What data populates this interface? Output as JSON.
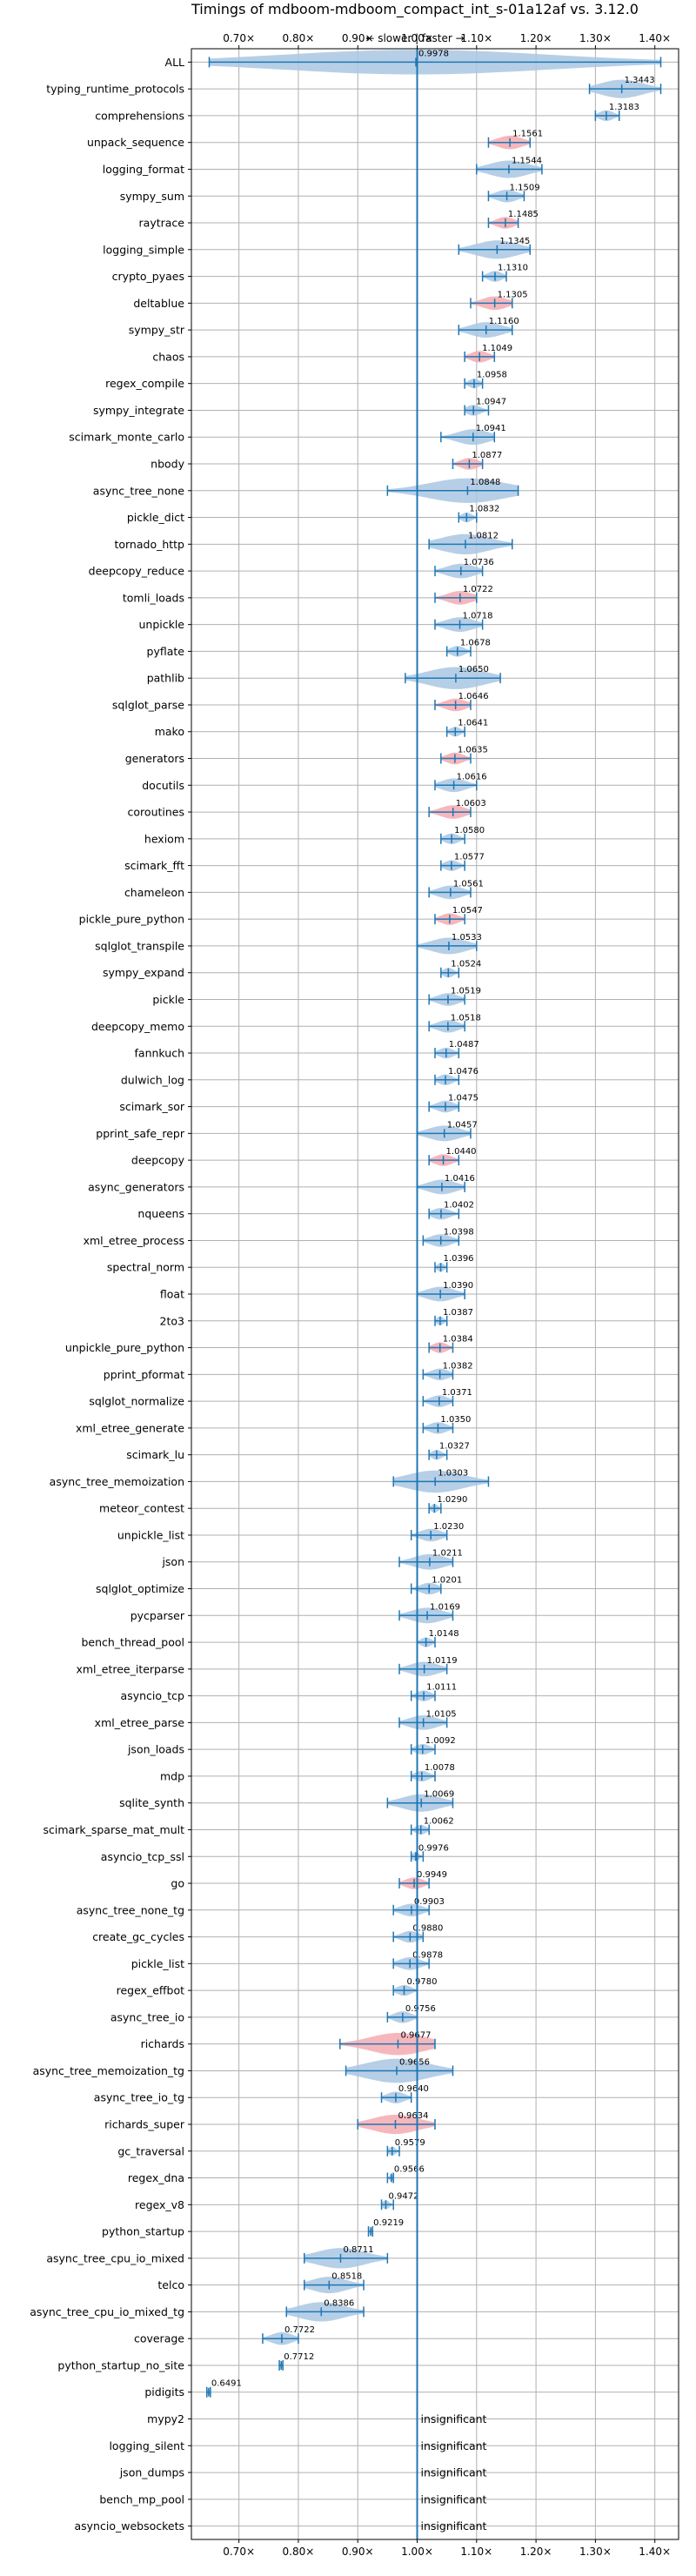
{
  "chart_data": {
    "type": "violin",
    "title": "Timings of mdboom-mdboom_compact_int_s-01a12af vs. 3.12.0",
    "subtitle": "← slower | faster →",
    "x_ticks": [
      "0.70×",
      "0.80×",
      "0.90×",
      "1.00×",
      "1.10×",
      "1.20×",
      "1.30×",
      "1.40×"
    ],
    "x_tick_values": [
      0.7,
      0.8,
      0.9,
      1.0,
      1.1,
      1.2,
      1.3,
      1.4
    ],
    "xlim": [
      0.62,
      1.44
    ],
    "reference_line": 1.0,
    "colors": {
      "faster": "#a9c7e3",
      "slower": "#f4aab0",
      "whisker": "#1f77b4",
      "reference": "#1f77b4"
    },
    "benchmarks": [
      {
        "name": "ALL",
        "value": 0.9978,
        "color": "faster",
        "min": 0.65,
        "max": 1.41
      },
      {
        "name": "typing_runtime_protocols",
        "value": 1.3443,
        "color": "faster",
        "min": 1.29,
        "max": 1.41
      },
      {
        "name": "comprehensions",
        "value": 1.3183,
        "color": "faster",
        "min": 1.3,
        "max": 1.34
      },
      {
        "name": "unpack_sequence",
        "value": 1.1561,
        "color": "slower",
        "min": 1.12,
        "max": 1.19
      },
      {
        "name": "logging_format",
        "value": 1.1544,
        "color": "faster",
        "min": 1.1,
        "max": 1.21
      },
      {
        "name": "sympy_sum",
        "value": 1.1509,
        "color": "faster",
        "min": 1.12,
        "max": 1.18
      },
      {
        "name": "raytrace",
        "value": 1.1485,
        "color": "slower",
        "min": 1.12,
        "max": 1.17
      },
      {
        "name": "logging_simple",
        "value": 1.1345,
        "color": "faster",
        "min": 1.07,
        "max": 1.19
      },
      {
        "name": "crypto_pyaes",
        "value": 1.131,
        "color": "faster",
        "min": 1.11,
        "max": 1.15
      },
      {
        "name": "deltablue",
        "value": 1.1305,
        "color": "slower",
        "min": 1.09,
        "max": 1.16
      },
      {
        "name": "sympy_str",
        "value": 1.116,
        "color": "faster",
        "min": 1.07,
        "max": 1.16
      },
      {
        "name": "chaos",
        "value": 1.1049,
        "color": "slower",
        "min": 1.08,
        "max": 1.13
      },
      {
        "name": "regex_compile",
        "value": 1.0958,
        "color": "faster",
        "min": 1.08,
        "max": 1.11
      },
      {
        "name": "sympy_integrate",
        "value": 1.0947,
        "color": "faster",
        "min": 1.08,
        "max": 1.12
      },
      {
        "name": "scimark_monte_carlo",
        "value": 1.0941,
        "color": "faster",
        "min": 1.04,
        "max": 1.13
      },
      {
        "name": "nbody",
        "value": 1.0877,
        "color": "slower",
        "min": 1.06,
        "max": 1.11
      },
      {
        "name": "async_tree_none",
        "value": 1.0848,
        "color": "faster",
        "min": 0.95,
        "max": 1.17
      },
      {
        "name": "pickle_dict",
        "value": 1.0832,
        "color": "faster",
        "min": 1.07,
        "max": 1.1
      },
      {
        "name": "tornado_http",
        "value": 1.0812,
        "color": "faster",
        "min": 1.02,
        "max": 1.16
      },
      {
        "name": "deepcopy_reduce",
        "value": 1.0736,
        "color": "faster",
        "min": 1.03,
        "max": 1.11
      },
      {
        "name": "tomli_loads",
        "value": 1.0722,
        "color": "slower",
        "min": 1.03,
        "max": 1.1
      },
      {
        "name": "unpickle",
        "value": 1.0718,
        "color": "faster",
        "min": 1.03,
        "max": 1.11
      },
      {
        "name": "pyflate",
        "value": 1.0678,
        "color": "faster",
        "min": 1.05,
        "max": 1.09
      },
      {
        "name": "pathlib",
        "value": 1.065,
        "color": "faster",
        "min": 0.98,
        "max": 1.14
      },
      {
        "name": "sqlglot_parse",
        "value": 1.0646,
        "color": "slower",
        "min": 1.03,
        "max": 1.09
      },
      {
        "name": "mako",
        "value": 1.0641,
        "color": "faster",
        "min": 1.05,
        "max": 1.08
      },
      {
        "name": "generators",
        "value": 1.0635,
        "color": "slower",
        "min": 1.04,
        "max": 1.09
      },
      {
        "name": "docutils",
        "value": 1.0616,
        "color": "faster",
        "min": 1.03,
        "max": 1.1
      },
      {
        "name": "coroutines",
        "value": 1.0603,
        "color": "slower",
        "min": 1.02,
        "max": 1.09
      },
      {
        "name": "hexiom",
        "value": 1.058,
        "color": "faster",
        "min": 1.04,
        "max": 1.08
      },
      {
        "name": "scimark_fft",
        "value": 1.0577,
        "color": "faster",
        "min": 1.04,
        "max": 1.08
      },
      {
        "name": "chameleon",
        "value": 1.0561,
        "color": "faster",
        "min": 1.02,
        "max": 1.09
      },
      {
        "name": "pickle_pure_python",
        "value": 1.0547,
        "color": "slower",
        "min": 1.03,
        "max": 1.08
      },
      {
        "name": "sqlglot_transpile",
        "value": 1.0533,
        "color": "faster",
        "min": 1.0,
        "max": 1.1
      },
      {
        "name": "sympy_expand",
        "value": 1.0524,
        "color": "faster",
        "min": 1.04,
        "max": 1.07
      },
      {
        "name": "pickle",
        "value": 1.0519,
        "color": "faster",
        "min": 1.02,
        "max": 1.08
      },
      {
        "name": "deepcopy_memo",
        "value": 1.0518,
        "color": "faster",
        "min": 1.02,
        "max": 1.08
      },
      {
        "name": "fannkuch",
        "value": 1.0487,
        "color": "faster",
        "min": 1.03,
        "max": 1.07
      },
      {
        "name": "dulwich_log",
        "value": 1.0476,
        "color": "faster",
        "min": 1.03,
        "max": 1.07
      },
      {
        "name": "scimark_sor",
        "value": 1.0475,
        "color": "faster",
        "min": 1.02,
        "max": 1.07
      },
      {
        "name": "pprint_safe_repr",
        "value": 1.0457,
        "color": "faster",
        "min": 1.0,
        "max": 1.09
      },
      {
        "name": "deepcopy",
        "value": 1.044,
        "color": "slower",
        "min": 1.02,
        "max": 1.07
      },
      {
        "name": "async_generators",
        "value": 1.0416,
        "color": "faster",
        "min": 1.0,
        "max": 1.08
      },
      {
        "name": "nqueens",
        "value": 1.0402,
        "color": "faster",
        "min": 1.02,
        "max": 1.07
      },
      {
        "name": "xml_etree_process",
        "value": 1.0398,
        "color": "faster",
        "min": 1.01,
        "max": 1.07
      },
      {
        "name": "spectral_norm",
        "value": 1.0396,
        "color": "faster",
        "min": 1.03,
        "max": 1.05
      },
      {
        "name": "float",
        "value": 1.039,
        "color": "faster",
        "min": 1.0,
        "max": 1.08
      },
      {
        "name": "2to3",
        "value": 1.0387,
        "color": "faster",
        "min": 1.03,
        "max": 1.05
      },
      {
        "name": "unpickle_pure_python",
        "value": 1.0384,
        "color": "slower",
        "min": 1.02,
        "max": 1.06
      },
      {
        "name": "pprint_pformat",
        "value": 1.0382,
        "color": "faster",
        "min": 1.01,
        "max": 1.06
      },
      {
        "name": "sqlglot_normalize",
        "value": 1.0371,
        "color": "faster",
        "min": 1.01,
        "max": 1.06
      },
      {
        "name": "xml_etree_generate",
        "value": 1.035,
        "color": "faster",
        "min": 1.01,
        "max": 1.06
      },
      {
        "name": "scimark_lu",
        "value": 1.0327,
        "color": "faster",
        "min": 1.02,
        "max": 1.05
      },
      {
        "name": "async_tree_memoization",
        "value": 1.0303,
        "color": "faster",
        "min": 0.96,
        "max": 1.12
      },
      {
        "name": "meteor_contest",
        "value": 1.029,
        "color": "faster",
        "min": 1.02,
        "max": 1.04
      },
      {
        "name": "unpickle_list",
        "value": 1.023,
        "color": "faster",
        "min": 0.99,
        "max": 1.05
      },
      {
        "name": "json",
        "value": 1.0211,
        "color": "faster",
        "min": 0.97,
        "max": 1.06
      },
      {
        "name": "sqlglot_optimize",
        "value": 1.0201,
        "color": "faster",
        "min": 0.99,
        "max": 1.04
      },
      {
        "name": "pycparser",
        "value": 1.0169,
        "color": "faster",
        "min": 0.97,
        "max": 1.06
      },
      {
        "name": "bench_thread_pool",
        "value": 1.0148,
        "color": "faster",
        "min": 1.0,
        "max": 1.03
      },
      {
        "name": "xml_etree_iterparse",
        "value": 1.0119,
        "color": "faster",
        "min": 0.97,
        "max": 1.05
      },
      {
        "name": "asyncio_tcp",
        "value": 1.0111,
        "color": "faster",
        "min": 0.99,
        "max": 1.03
      },
      {
        "name": "xml_etree_parse",
        "value": 1.0105,
        "color": "faster",
        "min": 0.97,
        "max": 1.05
      },
      {
        "name": "json_loads",
        "value": 1.0092,
        "color": "faster",
        "min": 0.99,
        "max": 1.03
      },
      {
        "name": "mdp",
        "value": 1.0078,
        "color": "faster",
        "min": 0.99,
        "max": 1.03
      },
      {
        "name": "sqlite_synth",
        "value": 1.0069,
        "color": "faster",
        "min": 0.95,
        "max": 1.06
      },
      {
        "name": "scimark_sparse_mat_mult",
        "value": 1.0062,
        "color": "faster",
        "min": 0.99,
        "max": 1.02
      },
      {
        "name": "asyncio_tcp_ssl",
        "value": 0.9976,
        "color": "faster",
        "min": 0.99,
        "max": 1.01
      },
      {
        "name": "go",
        "value": 0.9949,
        "color": "slower",
        "min": 0.97,
        "max": 1.02
      },
      {
        "name": "async_tree_none_tg",
        "value": 0.9903,
        "color": "faster",
        "min": 0.96,
        "max": 1.02
      },
      {
        "name": "create_gc_cycles",
        "value": 0.988,
        "color": "faster",
        "min": 0.96,
        "max": 1.01
      },
      {
        "name": "pickle_list",
        "value": 0.9878,
        "color": "faster",
        "min": 0.96,
        "max": 1.02
      },
      {
        "name": "regex_effbot",
        "value": 0.978,
        "color": "faster",
        "min": 0.96,
        "max": 1.0
      },
      {
        "name": "async_tree_io",
        "value": 0.9756,
        "color": "faster",
        "min": 0.95,
        "max": 1.0
      },
      {
        "name": "richards",
        "value": 0.9677,
        "color": "slower",
        "min": 0.87,
        "max": 1.03
      },
      {
        "name": "async_tree_memoization_tg",
        "value": 0.9656,
        "color": "faster",
        "min": 0.88,
        "max": 1.06
      },
      {
        "name": "async_tree_io_tg",
        "value": 0.964,
        "color": "faster",
        "min": 0.94,
        "max": 0.99
      },
      {
        "name": "richards_super",
        "value": 0.9634,
        "color": "slower",
        "min": 0.9,
        "max": 1.03
      },
      {
        "name": "gc_traversal",
        "value": 0.9579,
        "color": "faster",
        "min": 0.95,
        "max": 0.97
      },
      {
        "name": "regex_dna",
        "value": 0.9566,
        "color": "faster",
        "min": 0.95,
        "max": 0.96
      },
      {
        "name": "regex_v8",
        "value": 0.9472,
        "color": "faster",
        "min": 0.94,
        "max": 0.96
      },
      {
        "name": "python_startup",
        "value": 0.9219,
        "color": "faster",
        "min": 0.918,
        "max": 0.925
      },
      {
        "name": "async_tree_cpu_io_mixed",
        "value": 0.8711,
        "color": "faster",
        "min": 0.81,
        "max": 0.95
      },
      {
        "name": "telco",
        "value": 0.8518,
        "color": "faster",
        "min": 0.81,
        "max": 0.91
      },
      {
        "name": "async_tree_cpu_io_mixed_tg",
        "value": 0.8386,
        "color": "faster",
        "min": 0.78,
        "max": 0.91
      },
      {
        "name": "coverage",
        "value": 0.7722,
        "color": "faster",
        "min": 0.74,
        "max": 0.8
      },
      {
        "name": "python_startup_no_site",
        "value": 0.7712,
        "color": "faster",
        "min": 0.768,
        "max": 0.774
      },
      {
        "name": "pidigits",
        "value": 0.6491,
        "color": "faster",
        "min": 0.646,
        "max": 0.652
      },
      {
        "name": "mypy2",
        "insignificant": true
      },
      {
        "name": "logging_silent",
        "insignificant": true
      },
      {
        "name": "json_dumps",
        "insignificant": true
      },
      {
        "name": "bench_mp_pool",
        "insignificant": true
      },
      {
        "name": "asyncio_websockets",
        "insignificant": true
      }
    ],
    "insignificant_label": "insignificant",
    "grid": true
  }
}
